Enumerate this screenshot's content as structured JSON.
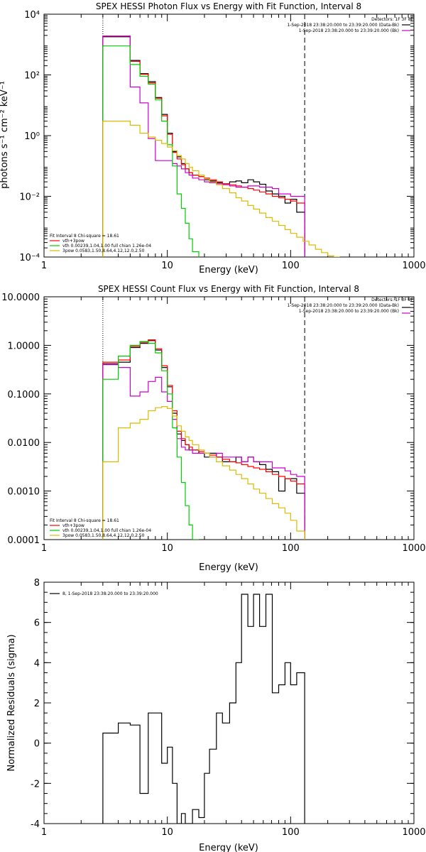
{
  "chart_data": [
    {
      "type": "line",
      "title": "SPEX HESSI Photon Flux vs Energy with Fit Function, Interval 8",
      "xlabel": "Energy (keV)",
      "ylabel": "photons s⁻¹ cm⁻² keV⁻¹",
      "xscale": "log",
      "yscale": "log",
      "xlim": [
        1,
        1000
      ],
      "ylim": [
        0.0001,
        10000
      ],
      "xticks": [
        {
          "v": 1,
          "label": "1"
        },
        {
          "v": 10,
          "label": "10"
        },
        {
          "v": 100,
          "label": "100"
        },
        {
          "v": 1000,
          "label": "1000"
        }
      ],
      "yticks": [
        {
          "v": 0.0001,
          "label": "10⁻⁴"
        },
        {
          "v": 0.01,
          "label": "10⁻²"
        },
        {
          "v": 1,
          "label": "10⁰"
        },
        {
          "v": 100,
          "label": "10²"
        },
        {
          "v": 10000,
          "label": "10⁴"
        }
      ],
      "vlines": [
        {
          "x": 3,
          "style": "dotted"
        },
        {
          "x": 130,
          "style": "dashed"
        }
      ],
      "legend_top_right": [
        "Detectors: 1F 3F 8F",
        "1-Sep-2018 23:38:20.000 to 23:39:20.000 (Data-Bk)",
        "1-Sep-2018 23:38:20.000 to 23:39:20.000 (Bk)"
      ],
      "legend_bottom_left": [
        "Fit Interval 8    Chi-square = 18.61",
        "vth+3pow",
        "vth 0.00239,1.04,1.00  full chian 1.26e-04",
        "3pow 0.0583,1.50,8.64,4.12,12.0,2.50"
      ],
      "series": [
        {
          "name": "Data-Bk",
          "color": "#000000",
          "edges": [
            3,
            4,
            5,
            6,
            7,
            8,
            9,
            10,
            11,
            12,
            13,
            14,
            15,
            16,
            18,
            20,
            22,
            25,
            28,
            32,
            36,
            40,
            45,
            50,
            56,
            63,
            71,
            80,
            90,
            100,
            112,
            130
          ],
          "values": [
            1800,
            1800,
            300,
            110,
            60,
            18,
            5,
            1.2,
            0.3,
            0.2,
            0.12,
            0.08,
            0.06,
            0.05,
            0.045,
            0.035,
            0.032,
            0.028,
            0.026,
            0.03,
            0.032,
            0.028,
            0.035,
            0.03,
            0.025,
            0.015,
            0.012,
            0.01,
            0.006,
            0.008,
            0.003
          ]
        },
        {
          "name": "vth+3pow",
          "color": "#ff0000",
          "edges": [
            3,
            4,
            5,
            6,
            7,
            8,
            9,
            10,
            11,
            12,
            13,
            14,
            15,
            16,
            18,
            20,
            22,
            25,
            28,
            32,
            36,
            40,
            45,
            50,
            56,
            63,
            71,
            80,
            90,
            100,
            112,
            130
          ],
          "values": [
            1900,
            1900,
            280,
            105,
            55,
            17,
            4.5,
            1.1,
            0.28,
            0.17,
            0.11,
            0.08,
            0.06,
            0.05,
            0.045,
            0.04,
            0.035,
            0.03,
            0.026,
            0.024,
            0.022,
            0.02,
            0.018,
            0.016,
            0.014,
            0.012,
            0.01,
            0.009,
            0.008,
            0.007,
            0.006
          ]
        },
        {
          "name": "Bk",
          "color": "#cc00cc",
          "edges": [
            3,
            4,
            5,
            6,
            7,
            8,
            9,
            10,
            11,
            12,
            13,
            14,
            15,
            16,
            18,
            20,
            22,
            25,
            28,
            32,
            36,
            40,
            45,
            50,
            56,
            63,
            71,
            80,
            90,
            100,
            112,
            130
          ],
          "values": [
            1900,
            1900,
            40,
            12,
            0.8,
            0.15,
            0.15,
            0.15,
            0.12,
            0.1,
            0.08,
            0.06,
            0.05,
            0.04,
            0.035,
            0.03,
            0.028,
            0.026,
            0.024,
            0.022,
            0.02,
            0.02,
            0.022,
            0.022,
            0.02,
            0.02,
            0.018,
            0.012,
            0.012,
            0.01,
            0.01
          ]
        },
        {
          "name": "vth",
          "color": "#00cc00",
          "edges": [
            3,
            4,
            5,
            6,
            7,
            8,
            9,
            10,
            11,
            12,
            13,
            14,
            15,
            16,
            18
          ],
          "values": [
            900,
            900,
            220,
            90,
            50,
            15,
            3,
            0.5,
            0.1,
            0.012,
            0.004,
            0.0013,
            0.0004,
            0.00015
          ]
        },
        {
          "name": "3pow",
          "color": "#ddbb00",
          "edges": [
            3,
            4,
            5,
            6,
            7,
            8,
            9,
            10,
            11,
            12,
            13,
            14,
            15,
            16,
            18,
            20,
            22,
            25,
            28,
            32,
            36,
            40,
            45,
            50,
            56,
            63,
            71,
            80,
            90,
            100,
            112,
            126,
            141,
            159,
            178,
            200,
            224,
            251
          ],
          "values": [
            3,
            3,
            2.2,
            1.2,
            0.9,
            0.7,
            0.55,
            0.42,
            0.32,
            0.22,
            0.17,
            0.12,
            0.09,
            0.07,
            0.05,
            0.037,
            0.03,
            0.024,
            0.018,
            0.013,
            0.009,
            0.007,
            0.005,
            0.0038,
            0.0028,
            0.002,
            0.0015,
            0.0011,
            0.0008,
            0.0006,
            0.00045,
            0.00033,
            0.00025,
            0.00018,
            0.00014,
            0.00011,
            0.0001
          ]
        }
      ]
    },
    {
      "type": "line",
      "title": "SPEX HESSI Count Flux vs Energy with Fit Function, Interval 8",
      "xlabel": "Energy (keV)",
      "ylabel": "",
      "xscale": "log",
      "yscale": "log",
      "xlim": [
        1,
        1000
      ],
      "ylim": [
        0.0001,
        10
      ],
      "xticks": [
        {
          "v": 1,
          "label": "1"
        },
        {
          "v": 10,
          "label": "10"
        },
        {
          "v": 100,
          "label": "100"
        },
        {
          "v": 1000,
          "label": "1000"
        }
      ],
      "yticks": [
        {
          "v": 0.0001,
          "label": "0.0001"
        },
        {
          "v": 0.001,
          "label": "0.0010"
        },
        {
          "v": 0.01,
          "label": "0.0100"
        },
        {
          "v": 0.1,
          "label": "0.1000"
        },
        {
          "v": 1,
          "label": "1.0000"
        },
        {
          "v": 10,
          "label": "10.0000"
        }
      ],
      "vlines": [
        {
          "x": 3,
          "style": "dotted"
        },
        {
          "x": 130,
          "style": "dashed"
        }
      ],
      "legend_top_right": [
        "Detectors: 1F 3F 8F",
        "1-Sep-2018 23:38:20.000 to 23:39:20.000 (Data-Bk)",
        "1-Sep-2018 23:38:20.000 to 23:39:20.000 (Bk)"
      ],
      "legend_bottom_left": [
        "Fit Interval 8    Chi-square = 18.61",
        "vth+3pow",
        "vth 0.00239,1.04,1.00  full chian 1.26e-04",
        "3pow 0.0583,1.50,8.64,4.12,12.0,2.50"
      ],
      "series": [
        {
          "name": "Data-Bk",
          "color": "#000000",
          "edges": [
            3,
            4,
            5,
            6,
            7,
            8,
            9,
            10,
            11,
            12,
            13,
            14,
            15,
            16,
            18,
            20,
            22,
            25,
            28,
            32,
            36,
            40,
            45,
            50,
            56,
            63,
            71,
            80,
            90,
            100,
            112,
            130
          ],
          "values": [
            0.42,
            0.45,
            0.9,
            1.1,
            1.25,
            0.8,
            0.35,
            0.14,
            0.04,
            0.015,
            0.011,
            0.009,
            0.007,
            0.007,
            0.006,
            0.005,
            0.006,
            0.005,
            0.004,
            0.004,
            0.005,
            0.004,
            0.005,
            0.004,
            0.0035,
            0.0028,
            0.0025,
            0.001,
            0.0018,
            0.0018,
            0.0009
          ]
        },
        {
          "name": "vth+3pow",
          "color": "#ff0000",
          "edges": [
            3,
            4,
            5,
            6,
            7,
            8,
            9,
            10,
            11,
            12,
            13,
            14,
            15,
            16,
            18,
            20,
            22,
            25,
            28,
            32,
            36,
            40,
            45,
            50,
            56,
            63,
            71,
            80,
            90,
            100,
            112,
            130
          ],
          "values": [
            0.45,
            0.5,
            0.95,
            1.15,
            1.3,
            0.85,
            0.38,
            0.15,
            0.045,
            0.017,
            0.012,
            0.009,
            0.008,
            0.007,
            0.0065,
            0.006,
            0.0055,
            0.005,
            0.0045,
            0.004,
            0.0038,
            0.0035,
            0.0032,
            0.003,
            0.0028,
            0.0025,
            0.0022,
            0.002,
            0.0018,
            0.0016,
            0.0014
          ]
        },
        {
          "name": "Bk",
          "color": "#cc00cc",
          "edges": [
            3,
            4,
            5,
            6,
            7,
            8,
            9,
            10,
            11,
            12,
            13,
            14,
            15,
            16,
            18,
            20,
            22,
            25,
            28,
            32,
            36,
            40,
            45,
            50,
            56,
            63,
            71,
            80,
            90,
            100,
            112,
            130
          ],
          "values": [
            0.4,
            0.35,
            0.09,
            0.11,
            0.18,
            0.22,
            0.11,
            0.07,
            0.03,
            0.012,
            0.008,
            0.007,
            0.007,
            0.006,
            0.006,
            0.006,
            0.005,
            0.006,
            0.005,
            0.005,
            0.005,
            0.004,
            0.005,
            0.004,
            0.004,
            0.004,
            0.003,
            0.003,
            0.0026,
            0.0022,
            0.002
          ]
        },
        {
          "name": "vth",
          "color": "#00cc00",
          "edges": [
            3,
            4,
            5,
            6,
            7,
            8,
            9,
            10,
            11,
            12,
            13,
            14,
            15,
            16,
            18
          ],
          "values": [
            0.2,
            0.6,
            1.0,
            1.2,
            1.1,
            0.7,
            0.3,
            0.1,
            0.02,
            0.005,
            0.0015,
            0.0005,
            0.0002,
            0.0001
          ]
        },
        {
          "name": "3pow",
          "color": "#ddbb00",
          "edges": [
            3,
            4,
            5,
            6,
            7,
            8,
            9,
            10,
            11,
            12,
            13,
            14,
            15,
            16,
            18,
            20,
            22,
            25,
            28,
            32,
            36,
            40,
            45,
            50,
            56,
            63,
            71,
            80,
            90,
            100,
            112,
            130
          ],
          "values": [
            0.004,
            0.02,
            0.025,
            0.03,
            0.045,
            0.052,
            0.055,
            0.05,
            0.035,
            0.022,
            0.017,
            0.013,
            0.011,
            0.009,
            0.007,
            0.006,
            0.005,
            0.004,
            0.0033,
            0.0027,
            0.0022,
            0.0018,
            0.0014,
            0.0011,
            0.0009,
            0.0007,
            0.00055,
            0.00045,
            0.00035,
            0.00025,
            0.00015
          ]
        }
      ]
    },
    {
      "type": "line",
      "title": "",
      "xlabel": "Energy (keV)",
      "ylabel": "Normalized Residuals (sigma)",
      "xscale": "log",
      "yscale": "linear",
      "xlim": [
        1,
        1000
      ],
      "ylim": [
        -4,
        8
      ],
      "xticks": [
        {
          "v": 1,
          "label": "1"
        },
        {
          "v": 10,
          "label": "10"
        },
        {
          "v": 100,
          "label": "100"
        },
        {
          "v": 1000,
          "label": "1000"
        }
      ],
      "yticks": [
        {
          "v": -4,
          "label": "-4"
        },
        {
          "v": -2,
          "label": "-2"
        },
        {
          "v": 0,
          "label": "0"
        },
        {
          "v": 2,
          "label": "2"
        },
        {
          "v": 4,
          "label": "4"
        },
        {
          "v": 6,
          "label": "6"
        },
        {
          "v": 8,
          "label": "8"
        }
      ],
      "legend_top_left": [
        "8, 1-Sep-2018 23:38:20.000 to 23:39:20.000"
      ],
      "series": [
        {
          "name": "8",
          "color": "#000000",
          "edges": [
            3,
            4,
            5,
            6,
            7,
            8,
            9,
            10,
            11,
            12,
            13,
            14,
            15,
            16,
            18,
            20,
            22,
            25,
            28,
            32,
            36,
            40,
            45,
            50,
            56,
            63,
            71,
            80,
            90,
            100,
            112,
            130
          ],
          "values": [
            0.5,
            1.0,
            0.9,
            -2.5,
            1.5,
            1.5,
            -1.0,
            -0.2,
            -2.0,
            -4.0,
            -3.5,
            -4.0,
            -4.0,
            -3.3,
            -3.7,
            -1.5,
            -0.3,
            1.5,
            1.0,
            2.0,
            4.0,
            7.4,
            5.8,
            7.4,
            5.8,
            7.4,
            2.5,
            2.9,
            4.0,
            2.9,
            3.5
          ]
        }
      ]
    }
  ]
}
